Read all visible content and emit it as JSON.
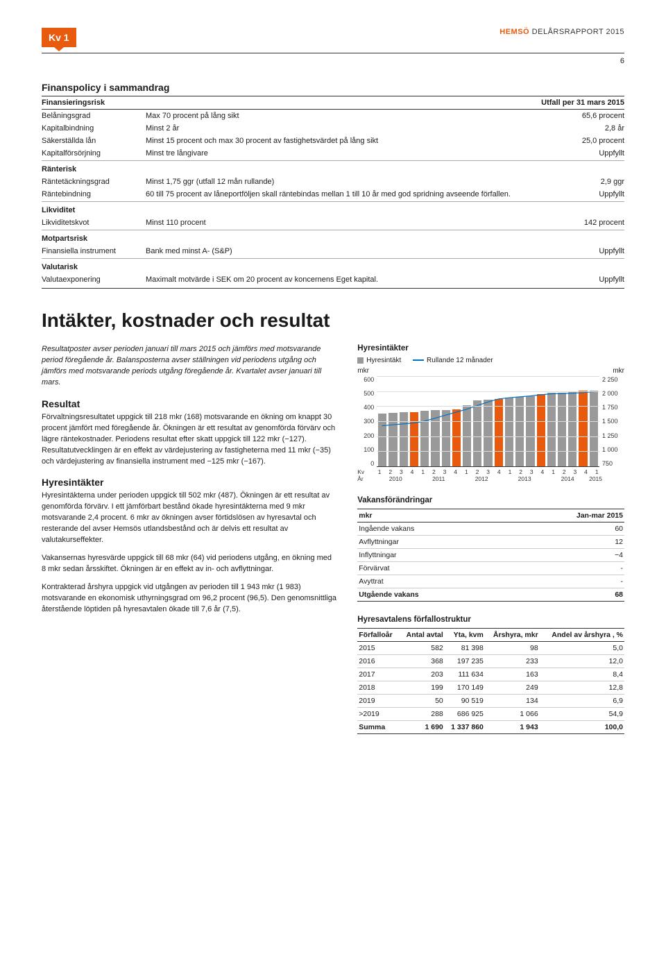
{
  "header": {
    "badge": "Kv 1",
    "brand": "HEMSÖ",
    "rest": " DELÅRSRAPPORT 2015",
    "page_number": "6"
  },
  "policy": {
    "title": "Finanspolicy i sammandrag",
    "col_headers": {
      "c1": "Finansieringsrisk",
      "c2": "",
      "c3": "Utfall per 31 mars 2015"
    },
    "rows_fin": [
      {
        "label": "Belåningsgrad",
        "req": "Max 70 procent på lång sikt",
        "out": "65,6 procent"
      },
      {
        "label": "Kapitalbindning",
        "req": "Minst 2 år",
        "out": "2,8 år"
      },
      {
        "label": "Säkerställda lån",
        "req": "Minst 15 procent och max 30 procent av fastighetsvärdet på lång sikt",
        "out": "25,0 procent"
      },
      {
        "label": "Kapitalförsörjning",
        "req": "Minst tre långivare",
        "out": "Uppfyllt"
      }
    ],
    "ranterisk_title": "Ränterisk",
    "rows_rante": [
      {
        "label": "Räntetäckningsgrad",
        "req": "Minst 1,75 ggr (utfall 12 mån rullande)",
        "out": "2,9 ggr"
      },
      {
        "label": "Räntebindning",
        "req": "60 till 75 procent av låneportföljen skall räntebindas mellan 1 till 10 år med god spridning avseende förfallen.",
        "out": "Uppfyllt"
      }
    ],
    "likv_title": "Likviditet",
    "rows_likv": [
      {
        "label": "Likviditetskvot",
        "req": "Minst 110 procent",
        "out": "142 procent"
      }
    ],
    "mot_title": "Motpartsrisk",
    "rows_mot": [
      {
        "label": "Finansiella instrument",
        "req": "Bank med minst A- (S&P)",
        "out": "Uppfyllt"
      }
    ],
    "val_title": "Valutarisk",
    "rows_val": [
      {
        "label": "Valutaexponering",
        "req": "Maximalt motvärde i SEK om 20 procent av koncernens Eget kapital.",
        "out": "Uppfyllt"
      }
    ]
  },
  "main_heading": "Intäkter, kostnader och resultat",
  "intro_italic": "Resultatposter avser perioden januari till mars 2015 och jämförs med motsvarande period föregående år. Balansposterna avser ställningen vid periodens utgång och jämförs med motsvarande periods utgång föregående år. Kvartalet avser januari till mars.",
  "resultat_title": "Resultat",
  "resultat_p": "Förvaltningsresultatet uppgick till 218 mkr (168) motsvarande en ökning om knappt 30 procent jämfört med föregående år. Ökningen är ett resultat av genomförda förvärv och lägre räntekostnader. Periodens resultat efter skatt uppgick till 122 mkr (−127). Resultatutvecklingen är en effekt av värdejustering av fastigheterna med 11 mkr (−35) och värdejustering av finansiella instrument med −125 mkr (−167).",
  "hyres_title": "Hyresintäkter",
  "hyres_p1": "Hyresintäkterna under perioden uppgick till 502 mkr (487). Ökningen är ett resultat av genomförda förvärv. I ett jämförbart bestånd ökade hyresintäkterna med 9 mkr motsvarande 2,4 procent. 6 mkr av ökningen avser förtidslösen av hyresavtal och resterande del avser Hemsös utlandsbestånd och är delvis ett resultat av valutakurseffekter.",
  "hyres_p2": "Vakansernas hyresvärde uppgick till 68 mkr (64) vid periodens utgång, en ökning med 8 mkr sedan årsskiftet. Ökningen är en effekt av in- och avflyttningar.",
  "hyres_p3": "Kontrakterad årshyra uppgick vid utgången av perioden till 1 943 mkr (1 983) motsvarande en ekonomisk uthyrningsgrad om 96,2 procent (96,5). Den genomsnittliga återstående löptiden på hyresavtalen ökade till 7,6 år (7,5).",
  "chart": {
    "title": "Hyresintäkter",
    "legend_bar": "Hyresintäkt",
    "legend_line": "Rullande 12 månader",
    "y_left_label": "mkr",
    "y_right_label": "mkr",
    "y_left_ticks": [
      "600",
      "500",
      "400",
      "300",
      "200",
      "100",
      "0"
    ],
    "y_right_ticks": [
      "2 250",
      "2 000",
      "1 750",
      "1 500",
      "1 250",
      "1 000",
      "750"
    ],
    "y_left_max": 600,
    "bar_color_normal": "#999999",
    "bar_color_highlight": "#e85a0e",
    "line_color": "#0072c6",
    "grid_color": "#dddddd",
    "bars": [
      {
        "v": 350,
        "h": false
      },
      {
        "v": 355,
        "h": false
      },
      {
        "v": 360,
        "h": false
      },
      {
        "v": 360,
        "h": true
      },
      {
        "v": 370,
        "h": false
      },
      {
        "v": 375,
        "h": false
      },
      {
        "v": 375,
        "h": false
      },
      {
        "v": 380,
        "h": true
      },
      {
        "v": 405,
        "h": false
      },
      {
        "v": 440,
        "h": false
      },
      {
        "v": 445,
        "h": false
      },
      {
        "v": 450,
        "h": true
      },
      {
        "v": 455,
        "h": false
      },
      {
        "v": 460,
        "h": false
      },
      {
        "v": 465,
        "h": false
      },
      {
        "v": 480,
        "h": true
      },
      {
        "v": 487,
        "h": false
      },
      {
        "v": 490,
        "h": false
      },
      {
        "v": 495,
        "h": false
      },
      {
        "v": 505,
        "h": true
      },
      {
        "v": 502,
        "h": false
      }
    ],
    "line_points_right_scale": [
      1425,
      1440,
      1455,
      1470,
      1500,
      1550,
      1600,
      1650,
      1700,
      1760,
      1820,
      1870,
      1890,
      1905,
      1920,
      1940,
      1955,
      1960,
      1965,
      1975,
      1990
    ],
    "y_right_min": 750,
    "y_right_max": 2250,
    "x_years": [
      "2010",
      "2011",
      "2012",
      "2013",
      "2014",
      "2015"
    ],
    "x_kv_label": "Kv",
    "x_ar_label": "År",
    "x_kv_groups": [
      [
        "1",
        "2",
        "3",
        "4"
      ],
      [
        "1",
        "2",
        "3",
        "4"
      ],
      [
        "1",
        "2",
        "3",
        "4"
      ],
      [
        "1",
        "2",
        "3",
        "4"
      ],
      [
        "1",
        "2",
        "3",
        "4"
      ],
      [
        "1"
      ]
    ]
  },
  "vacancy": {
    "title": "Vakansförändringar",
    "col_mkr": "mkr",
    "col_period": "Jan-mar 2015",
    "rows": [
      {
        "l": "Ingående vakans",
        "v": "60"
      },
      {
        "l": "Avflyttningar",
        "v": "12"
      },
      {
        "l": "Inflyttningar",
        "v": "−4"
      },
      {
        "l": "Förvärvat",
        "v": "-"
      },
      {
        "l": "Avyttrat",
        "v": "-"
      },
      {
        "l": "Utgående vakans",
        "v": "68"
      }
    ]
  },
  "forfall": {
    "title": "Hyresavtalens förfallostruktur",
    "cols": [
      "Förfalloår",
      "Antal avtal",
      "Yta, kvm",
      "Årshyra, mkr",
      "Andel av årshyra , %"
    ],
    "rows": [
      [
        "2015",
        "582",
        "81 398",
        "98",
        "5,0"
      ],
      [
        "2016",
        "368",
        "197 235",
        "233",
        "12,0"
      ],
      [
        "2017",
        "203",
        "111 634",
        "163",
        "8,4"
      ],
      [
        "2018",
        "199",
        "170 149",
        "249",
        "12,8"
      ],
      [
        "2019",
        "50",
        "90 519",
        "134",
        "6,9"
      ],
      [
        ">2019",
        "288",
        "686 925",
        "1 066",
        "54,9"
      ],
      [
        "Summa",
        "1 690",
        "1 337 860",
        "1 943",
        "100,0"
      ]
    ]
  }
}
